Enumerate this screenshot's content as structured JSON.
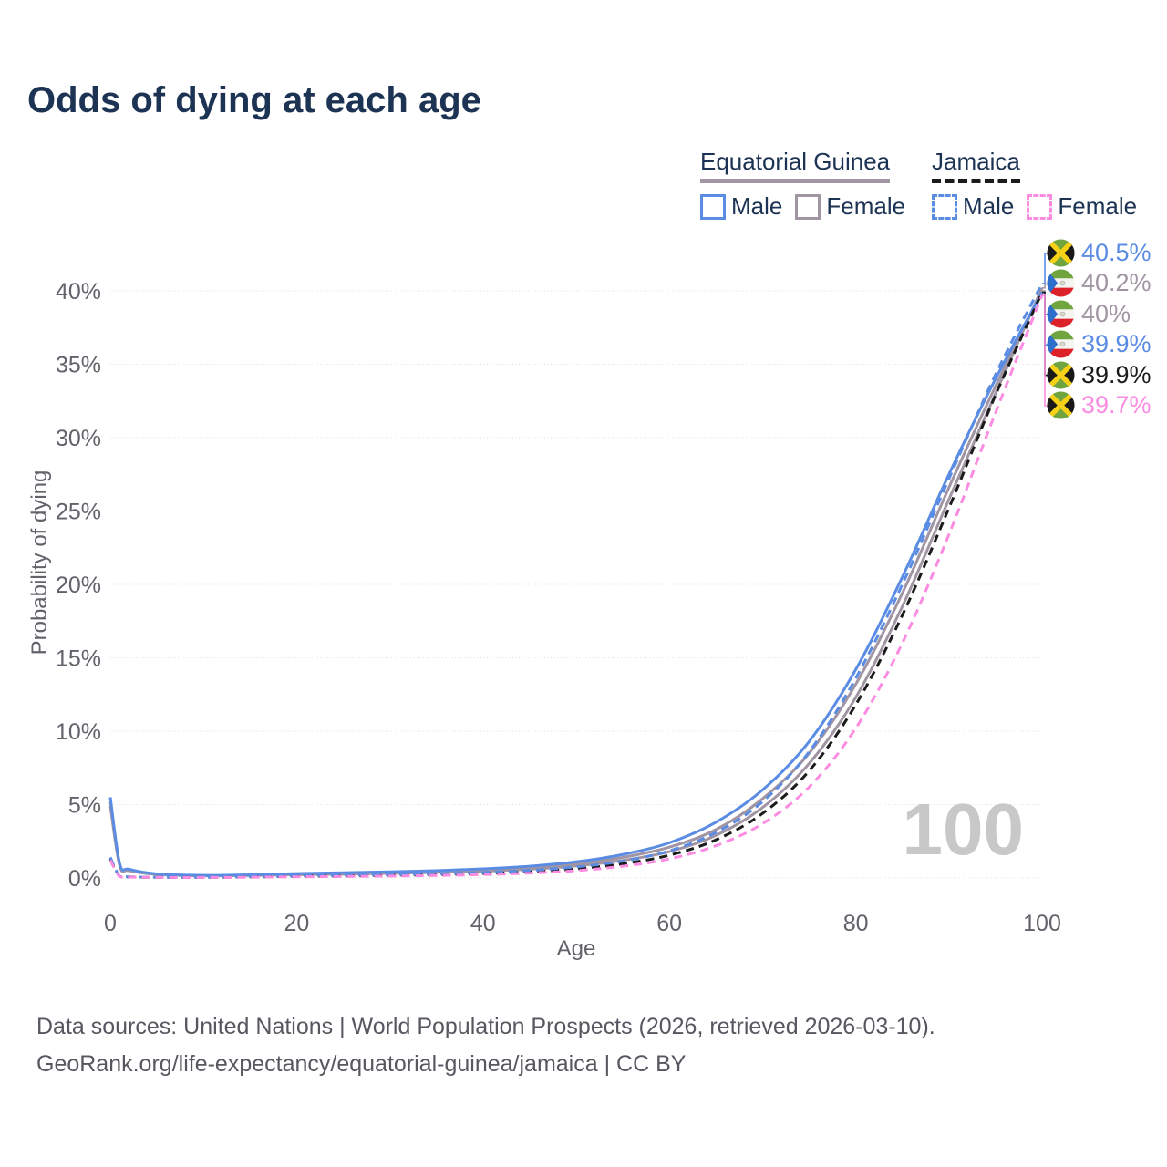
{
  "title": "Odds of dying at each age",
  "watermark": "100",
  "legend": {
    "groups": [
      {
        "label": "Equatorial Guinea",
        "style": "solid",
        "underline_color": "#a195a3",
        "items": [
          {
            "label": "Male",
            "color": "#5b8ce4",
            "dashed": false
          },
          {
            "label": "Female",
            "color": "#a195a3",
            "dashed": false
          }
        ]
      },
      {
        "label": "Jamaica",
        "style": "dashed",
        "underline_color": "#1b1b1b",
        "items": [
          {
            "label": "Male",
            "color": "#5b8ce4",
            "dashed": true
          },
          {
            "label": "Female",
            "color": "#fb8ce1",
            "dashed": true
          }
        ]
      }
    ]
  },
  "chart_data": {
    "type": "line",
    "title": "Odds of dying at each age",
    "xlabel": "Age",
    "ylabel": "Probability of dying",
    "unit": "percent",
    "xlim": [
      0,
      100
    ],
    "ylim": [
      0,
      42
    ],
    "grid": true,
    "legend_position": "top-right",
    "xtick_values": [
      0,
      20,
      40,
      60,
      80,
      100
    ],
    "xtick_labels": [
      "0",
      "20",
      "40",
      "60",
      "80",
      "100"
    ],
    "ytick_values": [
      0,
      5,
      10,
      15,
      20,
      25,
      30,
      35,
      40
    ],
    "ytick_labels": [
      "0%",
      "5%",
      "10%",
      "15%",
      "20%",
      "25%",
      "30%",
      "35%",
      "40%"
    ],
    "series": [
      {
        "name": "Equatorial Guinea — Female",
        "country": "Equatorial Guinea",
        "sex": "Female",
        "color": "#a195a3",
        "dash": false,
        "points": [
          [
            0,
            4.9
          ],
          [
            1,
            0.85
          ],
          [
            2,
            0.5
          ],
          [
            5,
            0.24
          ],
          [
            10,
            0.15
          ],
          [
            15,
            0.17
          ],
          [
            20,
            0.22
          ],
          [
            25,
            0.26
          ],
          [
            30,
            0.31
          ],
          [
            35,
            0.38
          ],
          [
            40,
            0.47
          ],
          [
            45,
            0.6
          ],
          [
            50,
            0.82
          ],
          [
            55,
            1.2
          ],
          [
            60,
            1.8
          ],
          [
            65,
            2.9
          ],
          [
            70,
            4.8
          ],
          [
            75,
            7.8
          ],
          [
            80,
            12.3
          ],
          [
            85,
            18.5
          ],
          [
            90,
            25.8
          ],
          [
            95,
            33.0
          ],
          [
            100,
            40.2
          ]
        ]
      },
      {
        "name": "Equatorial Guinea — Both sexes",
        "country": "Equatorial Guinea",
        "sex": "Both",
        "color": "#a195a3",
        "dash": false,
        "points": [
          [
            0,
            5.2
          ],
          [
            1,
            0.92
          ],
          [
            2,
            0.55
          ],
          [
            5,
            0.26
          ],
          [
            10,
            0.16
          ],
          [
            15,
            0.19
          ],
          [
            20,
            0.26
          ],
          [
            25,
            0.31
          ],
          [
            30,
            0.37
          ],
          [
            35,
            0.44
          ],
          [
            40,
            0.54
          ],
          [
            45,
            0.7
          ],
          [
            50,
            0.95
          ],
          [
            55,
            1.4
          ],
          [
            60,
            2.1
          ],
          [
            65,
            3.3
          ],
          [
            70,
            5.4
          ],
          [
            75,
            8.5
          ],
          [
            80,
            13.2
          ],
          [
            85,
            19.4
          ],
          [
            90,
            26.6
          ],
          [
            95,
            33.5
          ],
          [
            100,
            40.0
          ]
        ]
      },
      {
        "name": "Equatorial Guinea — Male",
        "country": "Equatorial Guinea",
        "sex": "Male",
        "color": "#5b8ce4",
        "dash": false,
        "points": [
          [
            0,
            5.5
          ],
          [
            1,
            1.0
          ],
          [
            2,
            0.6
          ],
          [
            5,
            0.28
          ],
          [
            10,
            0.18
          ],
          [
            15,
            0.22
          ],
          [
            20,
            0.3
          ],
          [
            25,
            0.36
          ],
          [
            30,
            0.42
          ],
          [
            35,
            0.5
          ],
          [
            40,
            0.62
          ],
          [
            45,
            0.8
          ],
          [
            50,
            1.1
          ],
          [
            55,
            1.6
          ],
          [
            60,
            2.4
          ],
          [
            65,
            3.8
          ],
          [
            70,
            6.0
          ],
          [
            75,
            9.3
          ],
          [
            80,
            14.2
          ],
          [
            85,
            20.5
          ],
          [
            90,
            27.5
          ],
          [
            95,
            34.0
          ],
          [
            100,
            39.9
          ]
        ]
      },
      {
        "name": "Jamaica — Both sexes",
        "country": "Jamaica",
        "sex": "Both",
        "color": "#1b1b1b",
        "dash": true,
        "points": [
          [
            0,
            1.3
          ],
          [
            1,
            0.11
          ],
          [
            2,
            0.07
          ],
          [
            5,
            0.045
          ],
          [
            10,
            0.04
          ],
          [
            15,
            0.07
          ],
          [
            20,
            0.11
          ],
          [
            25,
            0.14
          ],
          [
            30,
            0.18
          ],
          [
            35,
            0.23
          ],
          [
            40,
            0.3
          ],
          [
            45,
            0.42
          ],
          [
            50,
            0.62
          ],
          [
            55,
            0.97
          ],
          [
            60,
            1.55
          ],
          [
            65,
            2.6
          ],
          [
            70,
            4.4
          ],
          [
            75,
            7.3
          ],
          [
            80,
            11.8
          ],
          [
            85,
            17.9
          ],
          [
            90,
            25.2
          ],
          [
            95,
            32.9
          ],
          [
            100,
            39.9
          ]
        ]
      },
      {
        "name": "Jamaica — Male",
        "country": "Jamaica",
        "sex": "Male",
        "color": "#5b8ce4",
        "dash": true,
        "points": [
          [
            0,
            1.4
          ],
          [
            1,
            0.12
          ],
          [
            2,
            0.08
          ],
          [
            5,
            0.05
          ],
          [
            10,
            0.05
          ],
          [
            15,
            0.09
          ],
          [
            20,
            0.15
          ],
          [
            25,
            0.19
          ],
          [
            30,
            0.23
          ],
          [
            35,
            0.29
          ],
          [
            40,
            0.38
          ],
          [
            45,
            0.52
          ],
          [
            50,
            0.75
          ],
          [
            55,
            1.15
          ],
          [
            60,
            1.85
          ],
          [
            65,
            3.1
          ],
          [
            70,
            5.2
          ],
          [
            75,
            8.6
          ],
          [
            80,
            13.6
          ],
          [
            85,
            20.0
          ],
          [
            90,
            27.2
          ],
          [
            95,
            34.3
          ],
          [
            100,
            40.5
          ]
        ]
      },
      {
        "name": "Jamaica — Female",
        "country": "Jamaica",
        "sex": "Female",
        "color": "#fb8ce1",
        "dash": true,
        "points": [
          [
            0,
            1.2
          ],
          [
            1,
            0.1
          ],
          [
            2,
            0.065
          ],
          [
            5,
            0.04
          ],
          [
            10,
            0.035
          ],
          [
            15,
            0.05
          ],
          [
            20,
            0.08
          ],
          [
            25,
            0.1
          ],
          [
            30,
            0.13
          ],
          [
            35,
            0.17
          ],
          [
            40,
            0.23
          ],
          [
            45,
            0.33
          ],
          [
            50,
            0.5
          ],
          [
            55,
            0.8
          ],
          [
            60,
            1.3
          ],
          [
            65,
            2.2
          ],
          [
            70,
            3.7
          ],
          [
            75,
            6.2
          ],
          [
            80,
            10.2
          ],
          [
            85,
            16.0
          ],
          [
            90,
            23.4
          ],
          [
            95,
            31.7
          ],
          [
            100,
            39.7
          ]
        ]
      }
    ],
    "end_labels": [
      {
        "text": "40.5%",
        "value": 40.5,
        "color": "#5b8ce4",
        "flag": "jamaica",
        "series": "Jamaica — Male"
      },
      {
        "text": "40.2%",
        "value": 40.2,
        "color": "#a195a3",
        "flag": "equatorial-guinea",
        "series": "Equatorial Guinea — Female"
      },
      {
        "text": "40%",
        "value": 40.0,
        "color": "#a195a3",
        "flag": "equatorial-guinea",
        "series": "Equatorial Guinea — Both sexes"
      },
      {
        "text": "39.9%",
        "value": 39.9,
        "color": "#5b8ce4",
        "flag": "equatorial-guinea",
        "series": "Equatorial Guinea — Male"
      },
      {
        "text": "39.9%",
        "value": 39.9,
        "color": "#1b1b1b",
        "flag": "jamaica",
        "series": "Jamaica — Both sexes"
      },
      {
        "text": "39.7%",
        "value": 39.7,
        "color": "#fb8ce1",
        "flag": "jamaica",
        "series": "Jamaica — Female"
      }
    ]
  },
  "footer": {
    "line1": "Data sources: United Nations | World Population Prospects (2026, retrieved 2026-03-10).",
    "line2": "GeoRank.org/life-expectancy/equatorial-guinea/jamaica | CC BY"
  }
}
